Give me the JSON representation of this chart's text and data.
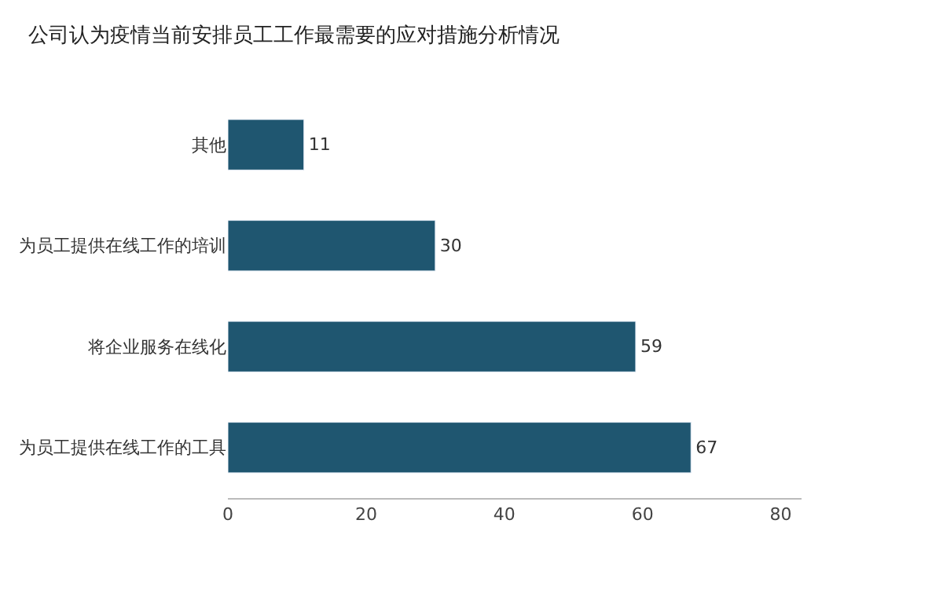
{
  "chart_data": {
    "type": "bar",
    "orientation": "horizontal",
    "title": "公司认为疫情当前安排员工工作最需要的应对措施分析情况",
    "categories": [
      "其他",
      "为员工提供在线工作的培训",
      "将企业服务在线化",
      "为员工提供在线工作的工具"
    ],
    "values": [
      11,
      30,
      59,
      67
    ],
    "color": "#1f5670",
    "xlim": [
      0,
      83
    ],
    "xticks": [
      0,
      20,
      40,
      60,
      80
    ],
    "data_labels": true
  }
}
